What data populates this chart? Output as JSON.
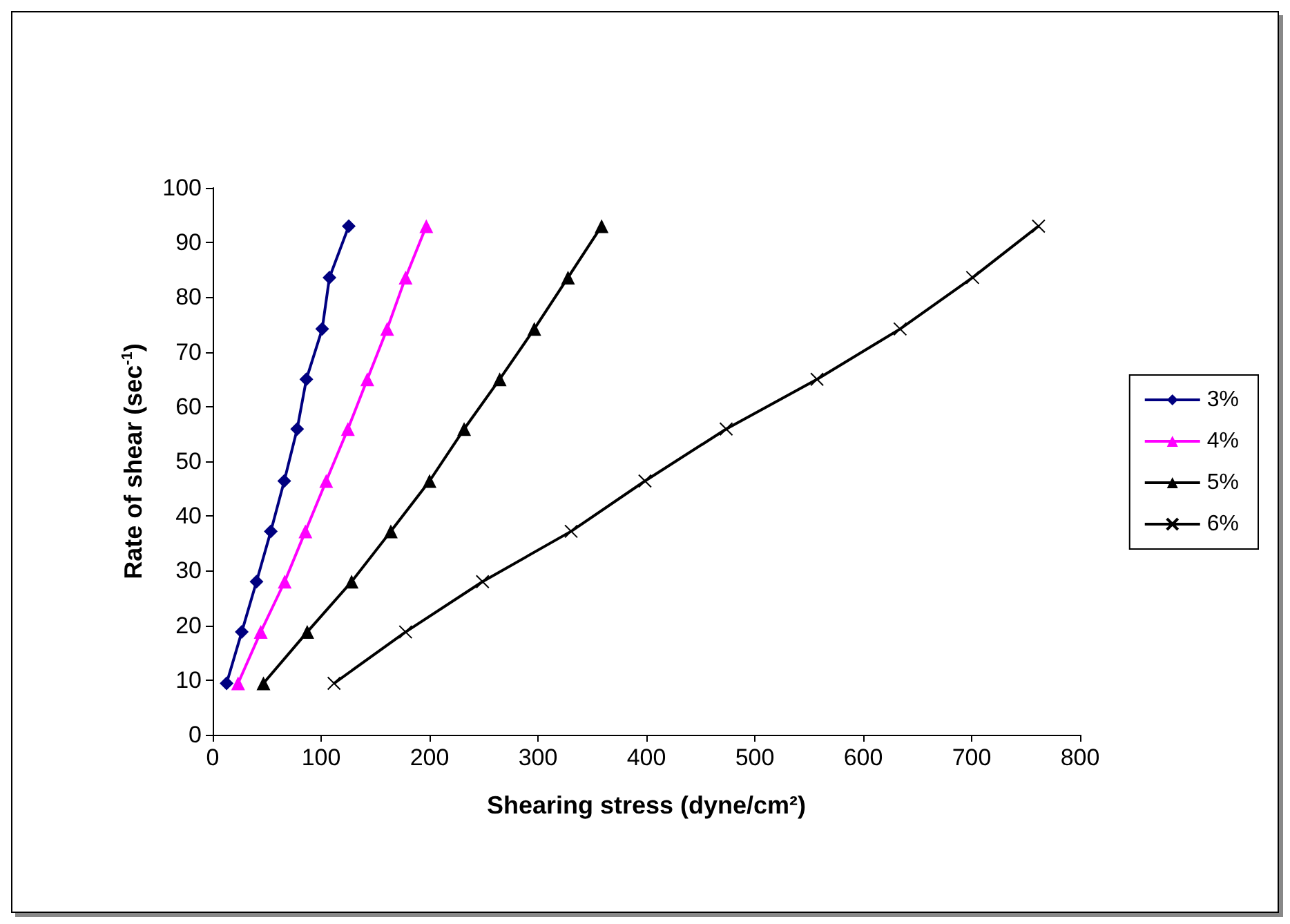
{
  "chart_data": {
    "type": "line",
    "xlabel": "Shearing stress (dyne/cm²)",
    "ylabel": "Rate of shear (sec$^{-1}$)",
    "xlim": [
      0,
      800
    ],
    "xticks": [
      0,
      100,
      200,
      300,
      400,
      500,
      600,
      700,
      800
    ],
    "ylim": [
      0,
      100
    ],
    "yticks": [
      0,
      10,
      20,
      30,
      40,
      50,
      60,
      70,
      80,
      90,
      100
    ],
    "grid": false,
    "legend": "right",
    "series": [
      {
        "name": "3%",
        "color": "#000080",
        "marker": "diamond",
        "x": [
          12.8,
          26.8,
          40.4,
          53.6,
          66,
          77.9,
          86.4,
          101,
          107.7,
          125.5
        ],
        "values": [
          9.4,
          18.8,
          28.0,
          37.2,
          46.4,
          55.9,
          65.0,
          74.2,
          83.6,
          93.0
        ]
      },
      {
        "name": "4%",
        "color": "#ff00ff",
        "marker": "triangle",
        "x": [
          23.4,
          44.3,
          66.4,
          85.5,
          104.7,
          124.7,
          142.6,
          160.9,
          177.9,
          197
        ],
        "values": [
          9.4,
          18.8,
          28.0,
          37.2,
          46.4,
          55.9,
          65.0,
          74.2,
          83.6,
          93.0
        ]
      },
      {
        "name": "5%",
        "color": "#000000",
        "marker": "triangle",
        "x": [
          46.8,
          87.2,
          128.1,
          164.3,
          200,
          231.9,
          264.7,
          296.6,
          327.7,
          358.7
        ],
        "values": [
          9.4,
          18.8,
          28.0,
          37.2,
          46.4,
          55.9,
          65.0,
          74.2,
          83.6,
          93.0
        ]
      },
      {
        "name": "6%",
        "color": "#000000",
        "marker": "cross",
        "x": [
          111.9,
          177.9,
          248.9,
          330.6,
          398.7,
          473.6,
          557.4,
          634,
          700.9,
          761.7
        ],
        "values": [
          9.4,
          18.8,
          28.0,
          37.2,
          46.4,
          55.9,
          65.0,
          74.2,
          83.6,
          93.0
        ]
      }
    ]
  }
}
